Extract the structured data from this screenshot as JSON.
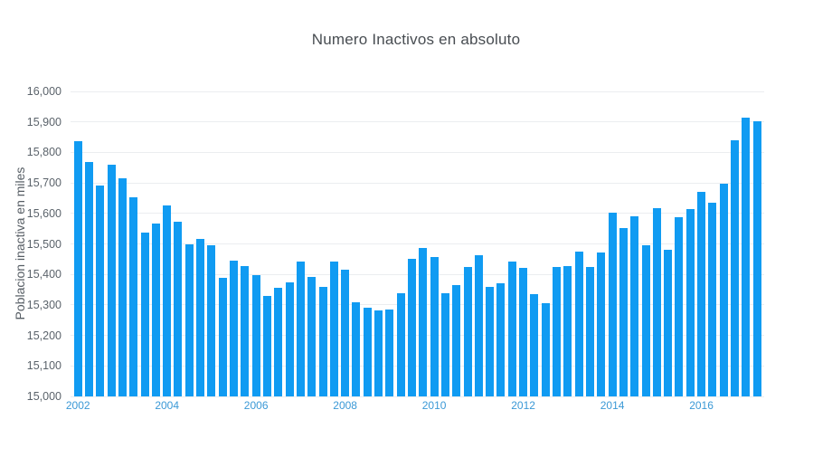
{
  "colors": {
    "bar": "#109bf2",
    "x_tick_text": "#3b99d6",
    "y_tick_text": "#5b636b",
    "title_text": "#484d52",
    "gridline": "#ebedf0",
    "background": "#ffffff"
  },
  "chart_data": {
    "type": "bar",
    "title": "Numero Inactivos en absoluto",
    "ylabel": "Poblacion inactiva en miles",
    "xlabel": "",
    "ylim": [
      15000,
      16000
    ],
    "ytick_step": 100,
    "grid": true,
    "legend": "none",
    "x": [
      "2002 Q1",
      "2002 Q2",
      "2002 Q3",
      "2002 Q4",
      "2003 Q1",
      "2003 Q2",
      "2003 Q3",
      "2003 Q4",
      "2004 Q1",
      "2004 Q2",
      "2004 Q3",
      "2004 Q4",
      "2005 Q1",
      "2005 Q2",
      "2005 Q3",
      "2005 Q4",
      "2006 Q1",
      "2006 Q2",
      "2006 Q3",
      "2006 Q4",
      "2007 Q1",
      "2007 Q2",
      "2007 Q3",
      "2007 Q4",
      "2008 Q1",
      "2008 Q2",
      "2008 Q3",
      "2008 Q4",
      "2009 Q1",
      "2009 Q2",
      "2009 Q3",
      "2009 Q4",
      "2010 Q1",
      "2010 Q2",
      "2010 Q3",
      "2010 Q4",
      "2011 Q1",
      "2011 Q2",
      "2011 Q3",
      "2011 Q4",
      "2012 Q1",
      "2012 Q2",
      "2012 Q3",
      "2012 Q4",
      "2013 Q1",
      "2013 Q2",
      "2013 Q3",
      "2013 Q4",
      "2014 Q1",
      "2014 Q2",
      "2014 Q3",
      "2014 Q4",
      "2015 Q1",
      "2015 Q2",
      "2015 Q3",
      "2015 Q4",
      "2016 Q1",
      "2016 Q2",
      "2016 Q3",
      "2016 Q4",
      "2017 Q1",
      "2017 Q2"
    ],
    "values": [
      15838,
      15768,
      15690,
      15760,
      15714,
      15652,
      15537,
      15566,
      15626,
      15573,
      15500,
      15517,
      15495,
      15390,
      15446,
      15428,
      15398,
      15330,
      15355,
      15375,
      15442,
      15391,
      15360,
      15442,
      15415,
      15308,
      15292,
      15283,
      15286,
      15338,
      15451,
      15488,
      15456,
      15337,
      15365,
      15425,
      15462,
      15360,
      15371,
      15442,
      15422,
      15335,
      15306,
      15425,
      15428,
      15474,
      15425,
      15472,
      15601,
      15553,
      15591,
      15497,
      15618,
      15480,
      15588,
      15615,
      15672,
      15634,
      15697,
      15840,
      15915,
      15903
    ],
    "ytick_labels": [
      "16,000",
      "15,900",
      "15,800",
      "15,700",
      "15,600",
      "15,500",
      "15,400",
      "15,300",
      "15,200",
      "15,100",
      "15,000"
    ],
    "xticks": [
      {
        "pos": 0,
        "label": "2002"
      },
      {
        "pos": 8,
        "label": "2004"
      },
      {
        "pos": 16,
        "label": "2006"
      },
      {
        "pos": 24,
        "label": "2008"
      },
      {
        "pos": 32,
        "label": "2010"
      },
      {
        "pos": 40,
        "label": "2012"
      },
      {
        "pos": 48,
        "label": "2014"
      },
      {
        "pos": 56,
        "label": "2016"
      }
    ]
  }
}
